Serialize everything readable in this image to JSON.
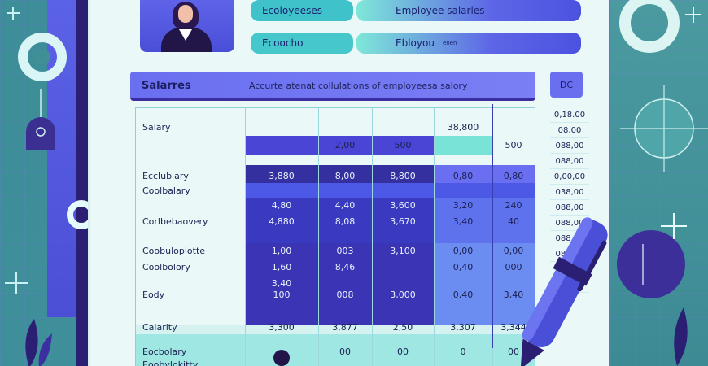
{
  "top_fields": {
    "field1_label": "Ecoloyees",
    "field1_suffix": "es",
    "field2_label": "Employee salarles",
    "field3_label": "Ecoocho",
    "field4_label": "Ebloyou",
    "field4_tag": "enen"
  },
  "header": {
    "title": "Salarres",
    "subtitle": "Accurte atenat collulations of employeesa salory",
    "side_label": "DC"
  },
  "rows": [
    {
      "label": "Salary",
      "values": [
        "",
        "",
        "",
        "38,800",
        ""
      ]
    },
    {
      "label": "",
      "values": [
        "",
        "2,00",
        "500",
        "",
        "500"
      ]
    },
    {
      "label": "Ecclublary",
      "values": [
        "3,880",
        "8,00",
        "8,800",
        "0,80",
        "0,80"
      ]
    },
    {
      "label": "Coolbalary",
      "values": [
        "",
        "",
        "",
        "",
        ""
      ]
    },
    {
      "label": "",
      "values": [
        "4,80",
        "4,40",
        "3,600",
        "3,20",
        "240"
      ]
    },
    {
      "label": "Corlbebaovery",
      "values": [
        "4,880",
        "8,08",
        "3,670",
        "3,40",
        "40"
      ]
    },
    {
      "label": "",
      "values": [
        "",
        "",
        "",
        "",
        ""
      ]
    },
    {
      "label": "Coobuloplotte",
      "values": [
        "1,00",
        "003",
        "3,100",
        "0,00",
        "0,00"
      ]
    },
    {
      "label": "Coolbolory",
      "values": [
        "1,60",
        "8,46",
        "",
        "0,40",
        "000"
      ]
    },
    {
      "label": "",
      "values": [
        "3,40",
        "",
        "",
        "",
        ""
      ]
    },
    {
      "label": "Eody",
      "values": [
        "100",
        "008",
        "3,000",
        "0,40",
        "3,40"
      ]
    },
    {
      "label": "",
      "values": [
        "",
        "",
        "",
        "",
        ""
      ]
    },
    {
      "label": "Calarity",
      "values": [
        "3,300",
        "3,877",
        "2,50",
        "3,307",
        "3,344"
      ]
    },
    {
      "label": "",
      "values": [
        "",
        "",
        "",
        "",
        ""
      ]
    },
    {
      "label": "Eocbolary",
      "values": [
        "",
        "00",
        "00",
        "0",
        "00"
      ]
    },
    {
      "label": "Eoobylokitty",
      "values": [
        "",
        "",
        "",
        "",
        ""
      ]
    }
  ],
  "right_column": [
    "0,18.00",
    "08,00",
    "088,00",
    "088,00",
    "0,00,00",
    "038,00",
    "088,00",
    "088,00",
    "088,00",
    "088,00",
    "088,00",
    "088,00"
  ],
  "colors": {
    "band_dark": "#3a34b8",
    "band_mid": "#4c48d8",
    "band_light": "#6b6ef0",
    "teal": "#7ae3d8",
    "header": "#6a6ff0"
  }
}
